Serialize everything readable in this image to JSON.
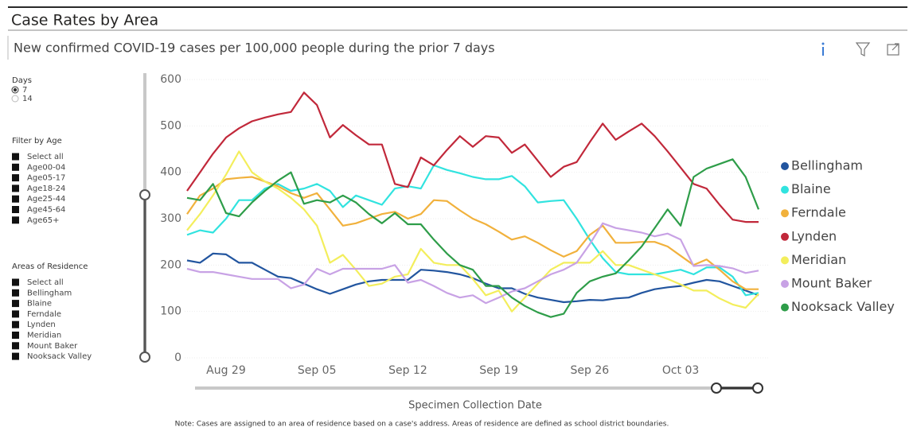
{
  "header": {
    "title": "Case Rates by Area",
    "subtitle": "New confirmed COVID-19 cases per 100,000 people during the prior 7 days"
  },
  "slicers": {
    "days": {
      "title": "Days",
      "options": [
        "7",
        "14"
      ],
      "selected": 0
    },
    "age": {
      "title": "Filter by Age",
      "items": [
        "Select all",
        "Age00-04",
        "Age05-17",
        "Age18-24",
        "Age25-44",
        "Age45-64",
        "Age65+"
      ]
    },
    "areas": {
      "title": "Areas of Residence",
      "items": [
        "Select all",
        "Bellingham",
        "Blaine",
        "Ferndale",
        "Lynden",
        "Meridian",
        "Mount Baker",
        "Nooksack Valley"
      ]
    }
  },
  "chart_data": {
    "type": "line",
    "x_label": "Specimen Collection Date",
    "categories": [
      null,
      null,
      null,
      "Aug 29",
      null,
      null,
      null,
      null,
      null,
      null,
      "Sep 05",
      null,
      null,
      null,
      null,
      null,
      null,
      "Sep 12",
      null,
      null,
      null,
      null,
      null,
      null,
      "Sep 19",
      null,
      null,
      null,
      null,
      null,
      null,
      "Sep 26",
      null,
      null,
      null,
      null,
      null,
      null,
      "Oct 03",
      null,
      null,
      null,
      null,
      null,
      null
    ],
    "ylim": [
      0,
      600
    ],
    "yticks": [
      0,
      100,
      200,
      300,
      400,
      500,
      600
    ],
    "grid": true,
    "legend": "right",
    "series": [
      {
        "name": "Bellingham",
        "color": "#22559f",
        "values": [
          210,
          205,
          225,
          223,
          205,
          205,
          190,
          175,
          172,
          160,
          148,
          138,
          148,
          158,
          165,
          168,
          168,
          168,
          190,
          188,
          185,
          180,
          172,
          160,
          150,
          150,
          138,
          130,
          125,
          120,
          122,
          125,
          124,
          128,
          130,
          140,
          148,
          152,
          155,
          162,
          168,
          165,
          155,
          145,
          135
        ]
      },
      {
        "name": "Blaine",
        "color": "#31e3df",
        "values": [
          265,
          275,
          270,
          300,
          340,
          340,
          365,
          375,
          360,
          365,
          375,
          360,
          325,
          350,
          340,
          330,
          365,
          370,
          365,
          415,
          405,
          398,
          390,
          385,
          385,
          392,
          370,
          335,
          338,
          340,
          300,
          255,
          215,
          185,
          180,
          180,
          180,
          185,
          190,
          180,
          195,
          195,
          175,
          135,
          140
        ]
      },
      {
        "name": "Ferndale",
        "color": "#f1b13c",
        "values": [
          310,
          350,
          365,
          385,
          388,
          390,
          380,
          370,
          355,
          345,
          355,
          320,
          285,
          290,
          300,
          310,
          315,
          300,
          310,
          340,
          338,
          318,
          300,
          288,
          272,
          255,
          262,
          248,
          232,
          218,
          230,
          265,
          285,
          248,
          248,
          250,
          250,
          240,
          220,
          200,
          212,
          190,
          165,
          148,
          148
        ]
      },
      {
        "name": "Lynden",
        "color": "#c1283a",
        "values": [
          360,
          400,
          440,
          475,
          495,
          510,
          518,
          525,
          530,
          572,
          545,
          475,
          502,
          480,
          460,
          460,
          375,
          368,
          432,
          415,
          448,
          478,
          455,
          478,
          475,
          442,
          460,
          425,
          390,
          412,
          422,
          465,
          505,
          470,
          488,
          505,
          478,
          445,
          410,
          375,
          365,
          330,
          298,
          293,
          293
        ]
      },
      {
        "name": "Meridian",
        "color": "#f3ee5c",
        "values": [
          275,
          310,
          350,
          395,
          445,
          400,
          380,
          365,
          345,
          320,
          285,
          205,
          222,
          190,
          155,
          160,
          175,
          180,
          235,
          205,
          200,
          200,
          170,
          135,
          145,
          100,
          130,
          160,
          190,
          205,
          205,
          205,
          230,
          200,
          200,
          190,
          180,
          170,
          158,
          145,
          145,
          128,
          115,
          108,
          138
        ]
      },
      {
        "name": "Mount Baker",
        "color": "#c8a2e5",
        "values": [
          192,
          185,
          185,
          180,
          175,
          170,
          170,
          170,
          150,
          158,
          192,
          180,
          192,
          192,
          192,
          192,
          200,
          162,
          168,
          155,
          140,
          130,
          135,
          118,
          130,
          143,
          150,
          165,
          180,
          190,
          205,
          245,
          290,
          280,
          275,
          270,
          262,
          268,
          255,
          198,
          200,
          198,
          193,
          183,
          188
        ]
      },
      {
        "name": "Nooksack Valley",
        "color": "#2e9d49",
        "values": [
          345,
          340,
          375,
          312,
          305,
          335,
          360,
          382,
          400,
          332,
          340,
          335,
          350,
          335,
          310,
          290,
          312,
          288,
          288,
          255,
          225,
          200,
          190,
          155,
          155,
          130,
          112,
          98,
          88,
          95,
          140,
          165,
          175,
          182,
          210,
          240,
          280,
          320,
          285,
          390,
          408,
          418,
          428,
          390,
          320
        ]
      }
    ]
  },
  "note": "Note: Cases are assigned to an area of residence based on a case's address. Areas of residence are defined as school district boundaries."
}
